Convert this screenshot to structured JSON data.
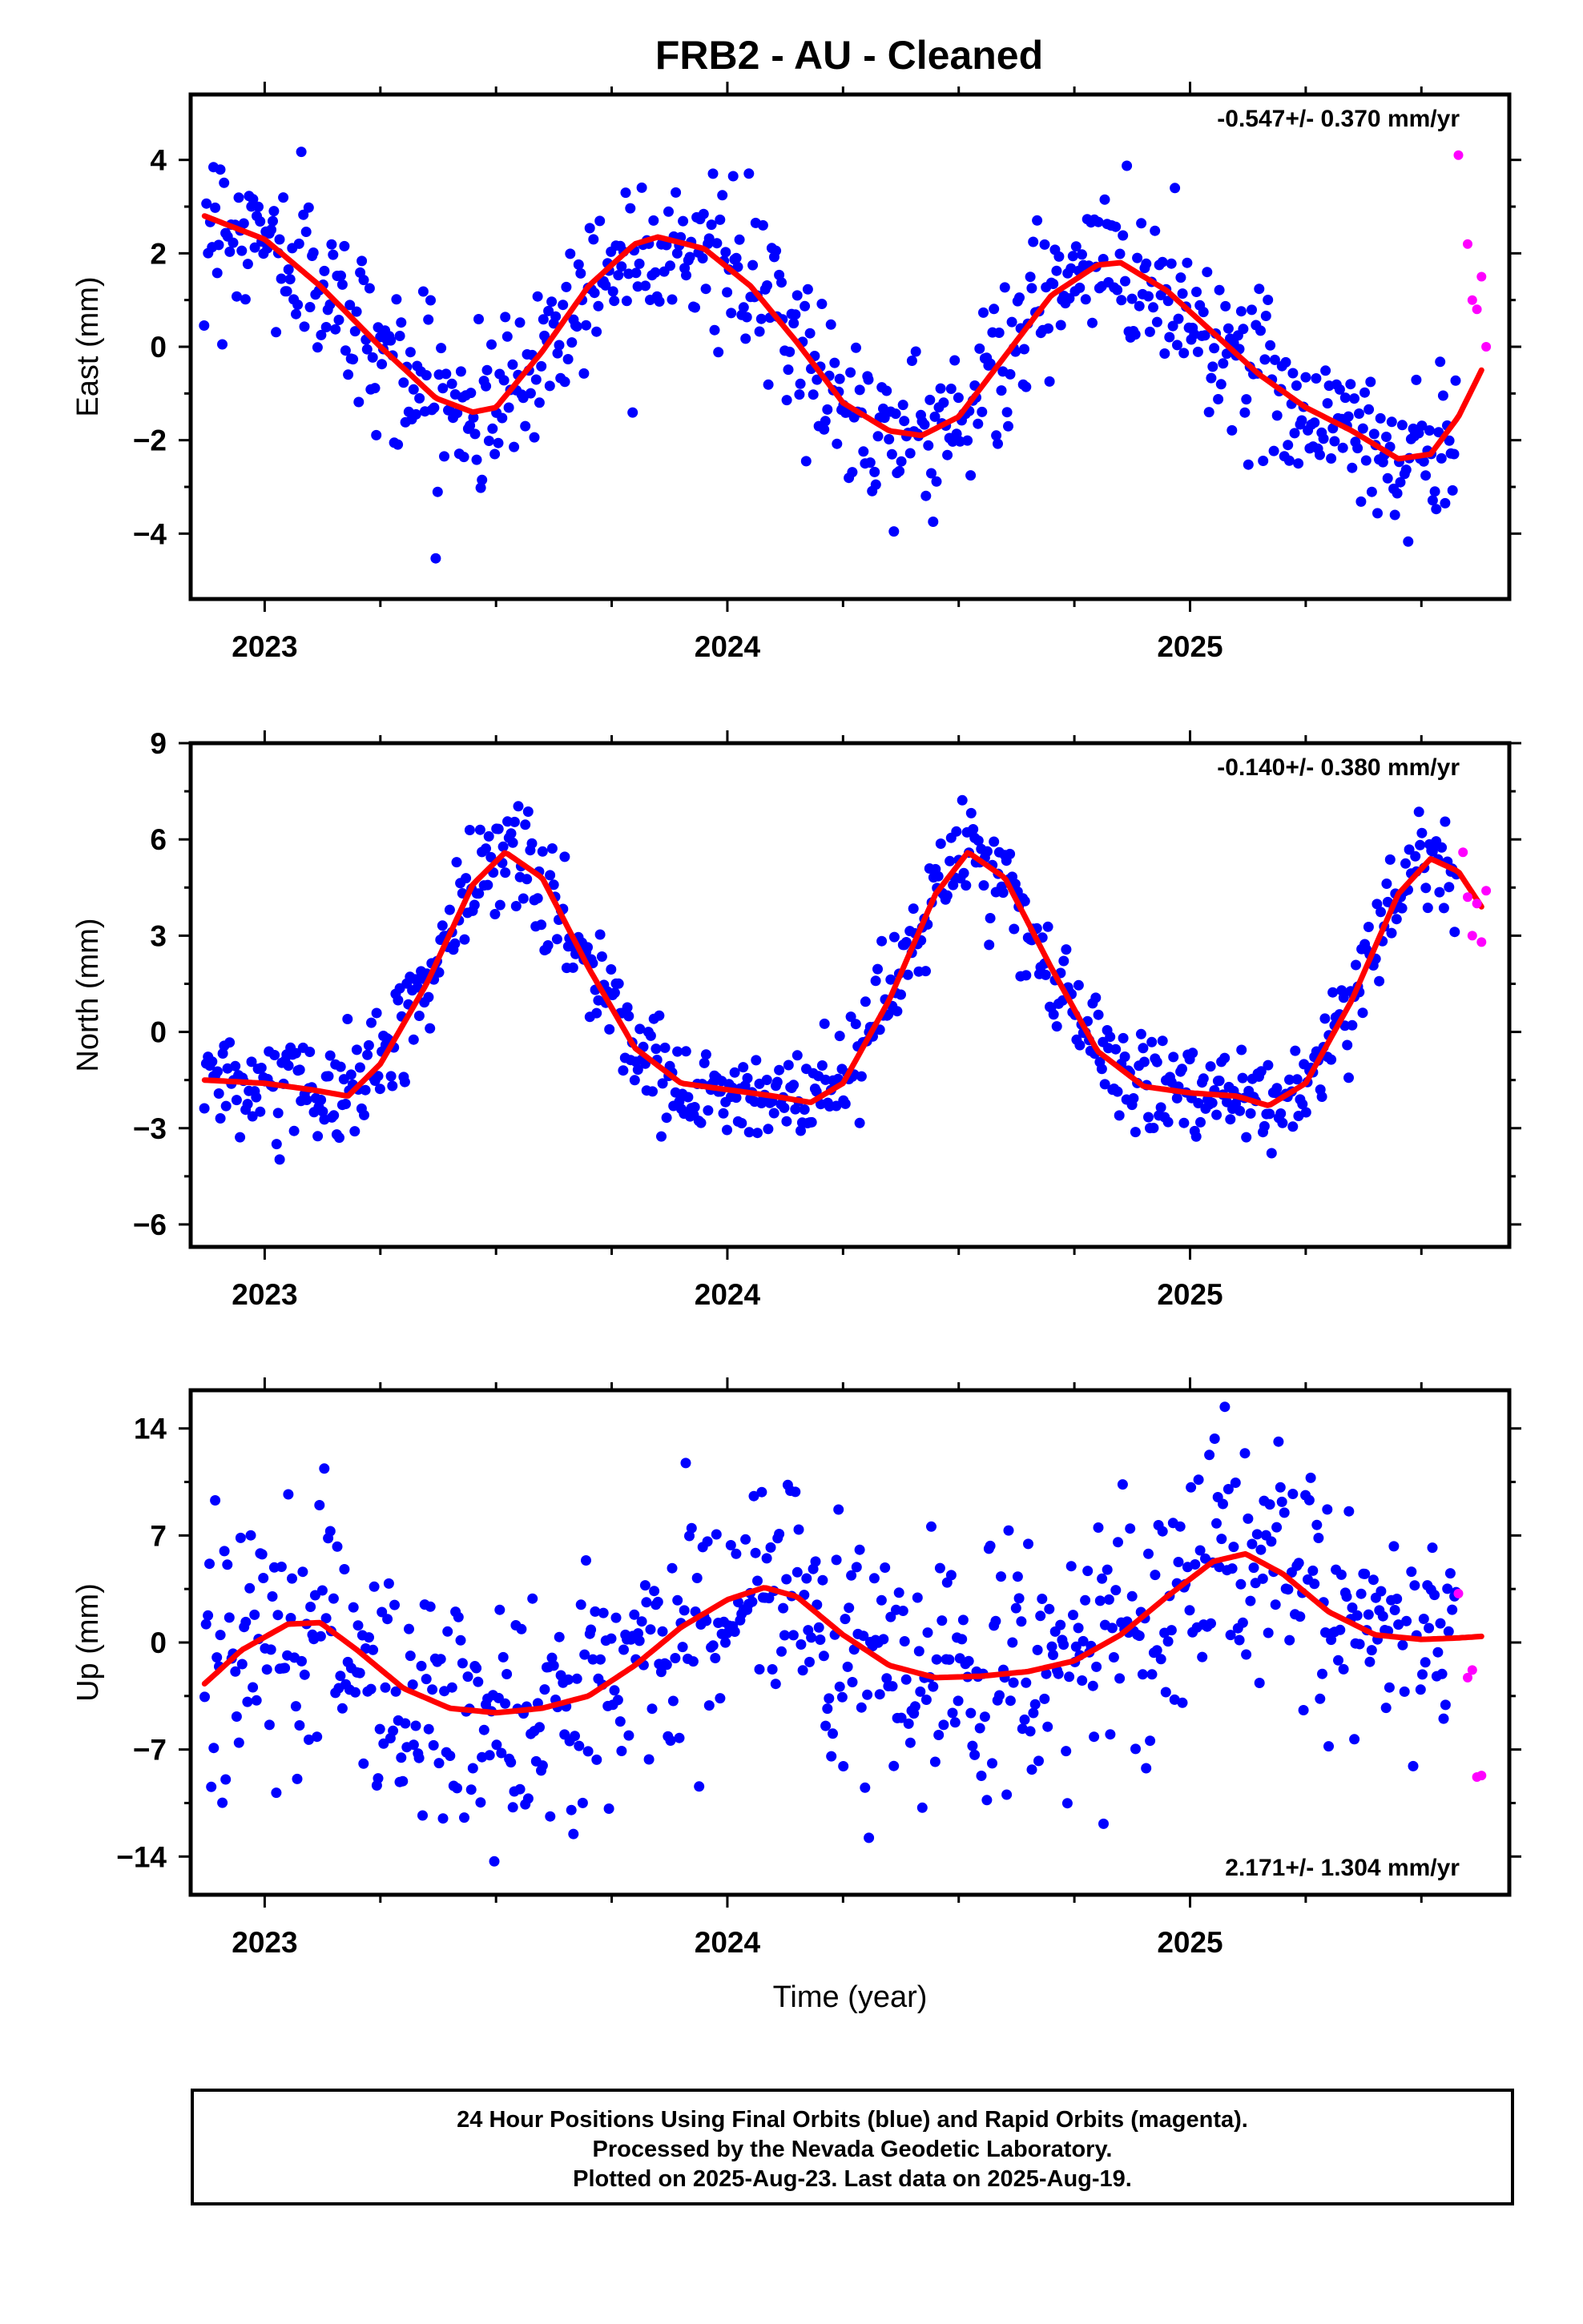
{
  "title": "FRB2  - AU - Cleaned",
  "xlabel": "Time (year)",
  "footer": {
    "line1": "24 Hour Positions Using Final Orbits (blue) and Rapid Orbits (magenta).",
    "line2": "Processed by the Nevada Geodetic Laboratory.",
    "line3": "Plotted on 2025-Aug-23. Last data on 2025-Aug-19."
  },
  "colors": {
    "final": "#0000ff",
    "rapid": "#ff00ff",
    "model": "#ff0000"
  },
  "chart_data": [
    {
      "type": "scatter",
      "component": "east",
      "ylabel": "East (mm)",
      "rate_label": "-0.547+/- 0.370 mm/yr",
      "rate_position": "top-right",
      "xlim": [
        2022.84,
        2025.69
      ],
      "ylim": [
        -5.4,
        5.4
      ],
      "yticks": [
        -4,
        -2,
        0,
        2,
        4
      ],
      "xticks": [
        2023,
        2024,
        2025
      ],
      "model": {
        "x": [
          2022.87,
          2023.0,
          2023.12,
          2023.25,
          2023.37,
          2023.45,
          2023.5,
          2023.6,
          2023.7,
          2023.8,
          2023.85,
          2023.95,
          2024.05,
          2024.15,
          2024.25,
          2024.35,
          2024.42,
          2024.5,
          2024.6,
          2024.7,
          2024.8,
          2024.85,
          2024.95,
          2025.05,
          2025.15,
          2025.25,
          2025.35,
          2025.45,
          2025.52,
          2025.58,
          2025.63
        ],
        "y": [
          2.8,
          2.3,
          1.3,
          0.0,
          -1.1,
          -1.4,
          -1.3,
          -0.1,
          1.3,
          2.2,
          2.35,
          2.1,
          1.3,
          0.1,
          -1.2,
          -1.8,
          -1.9,
          -1.5,
          -0.2,
          1.1,
          1.75,
          1.8,
          1.2,
          0.3,
          -0.6,
          -1.3,
          -1.8,
          -2.4,
          -2.3,
          -1.5,
          -0.5
        ]
      },
      "seasonal": {
        "mean": 0.2,
        "amp": 2.2,
        "peak": 0.83,
        "trend": -0.55,
        "noise": 0.85,
        "n": 700
      },
      "rapid": {
        "x": [
          2025.58,
          2025.6,
          2025.61,
          2025.62,
          2025.63,
          2025.64
        ],
        "y": [
          4.1,
          2.2,
          1.0,
          0.8,
          1.5,
          0.0
        ]
      }
    },
    {
      "type": "scatter",
      "component": "north",
      "ylabel": "North (mm)",
      "rate_label": "-0.140+/- 0.380 mm/yr",
      "rate_position": "top-right",
      "xlim": [
        2022.84,
        2025.69
      ],
      "ylim": [
        -6.7,
        9.0
      ],
      "yticks": [
        -6,
        -3,
        0,
        3,
        6,
        9
      ],
      "xticks": [
        2023,
        2024,
        2025
      ],
      "model": {
        "x": [
          2022.87,
          2023.0,
          2023.1,
          2023.18,
          2023.25,
          2023.35,
          2023.45,
          2023.52,
          2023.6,
          2023.7,
          2023.8,
          2023.9,
          2024.0,
          2024.1,
          2024.18,
          2024.25,
          2024.35,
          2024.45,
          2024.52,
          2024.6,
          2024.7,
          2024.8,
          2024.9,
          2025.0,
          2025.1,
          2025.17,
          2025.25,
          2025.35,
          2025.45,
          2025.52,
          2025.58,
          2025.63
        ],
        "y": [
          -1.5,
          -1.6,
          -1.8,
          -2.0,
          -1.0,
          1.5,
          4.6,
          5.6,
          4.8,
          2.0,
          -0.5,
          -1.6,
          -1.8,
          -2.0,
          -2.2,
          -1.6,
          1.0,
          4.3,
          5.6,
          4.8,
          2.0,
          -0.6,
          -1.7,
          -1.9,
          -2.0,
          -2.3,
          -1.6,
          1.0,
          4.3,
          5.4,
          5.0,
          3.9
        ]
      },
      "seasonal": {
        "mean": 0.5,
        "amp": 3.8,
        "peak": 0.52,
        "trend": -0.14,
        "noise": 0.8,
        "n": 700
      },
      "rapid": {
        "x": [
          2025.59,
          2025.6,
          2025.61,
          2025.62,
          2025.63,
          2025.64
        ],
        "y": [
          5.6,
          4.2,
          3.0,
          4.0,
          2.8,
          4.4
        ]
      }
    },
    {
      "type": "scatter",
      "component": "up",
      "ylabel": "Up (mm)",
      "rate_label": "2.171+/- 1.304 mm/yr",
      "rate_position": "bottom-right",
      "xlim": [
        2022.84,
        2025.69
      ],
      "ylim": [
        -16.5,
        16.5
      ],
      "yticks": [
        -14,
        -7,
        0,
        7,
        14
      ],
      "xticks": [
        2023,
        2024,
        2025
      ],
      "model": {
        "x": [
          2022.87,
          2022.95,
          2023.05,
          2023.12,
          2023.2,
          2023.3,
          2023.4,
          2023.5,
          2023.6,
          2023.7,
          2023.8,
          2023.9,
          2024.0,
          2024.08,
          2024.15,
          2024.25,
          2024.35,
          2024.45,
          2024.55,
          2024.65,
          2024.75,
          2024.85,
          2024.95,
          2025.05,
          2025.12,
          2025.2,
          2025.3,
          2025.4,
          2025.5,
          2025.58,
          2025.63
        ],
        "y": [
          -2.7,
          -0.5,
          1.2,
          1.3,
          -0.5,
          -3.0,
          -4.3,
          -4.6,
          -4.3,
          -3.5,
          -1.5,
          1.0,
          2.8,
          3.6,
          3.0,
          0.5,
          -1.5,
          -2.3,
          -2.2,
          -1.9,
          -1.2,
          0.5,
          3.0,
          5.3,
          5.8,
          4.5,
          2.0,
          0.5,
          0.2,
          0.3,
          0.4
        ]
      },
      "seasonal": {
        "mean": 0.0,
        "amp": 2.5,
        "peak": 0.1,
        "trend": 2.17,
        "noise": 4.0,
        "n": 700
      },
      "rapid": {
        "x": [
          2025.58,
          2025.6,
          2025.61,
          2025.62,
          2025.63
        ],
        "y": [
          3.2,
          -2.3,
          -1.8,
          -8.8,
          -8.7
        ]
      }
    }
  ]
}
